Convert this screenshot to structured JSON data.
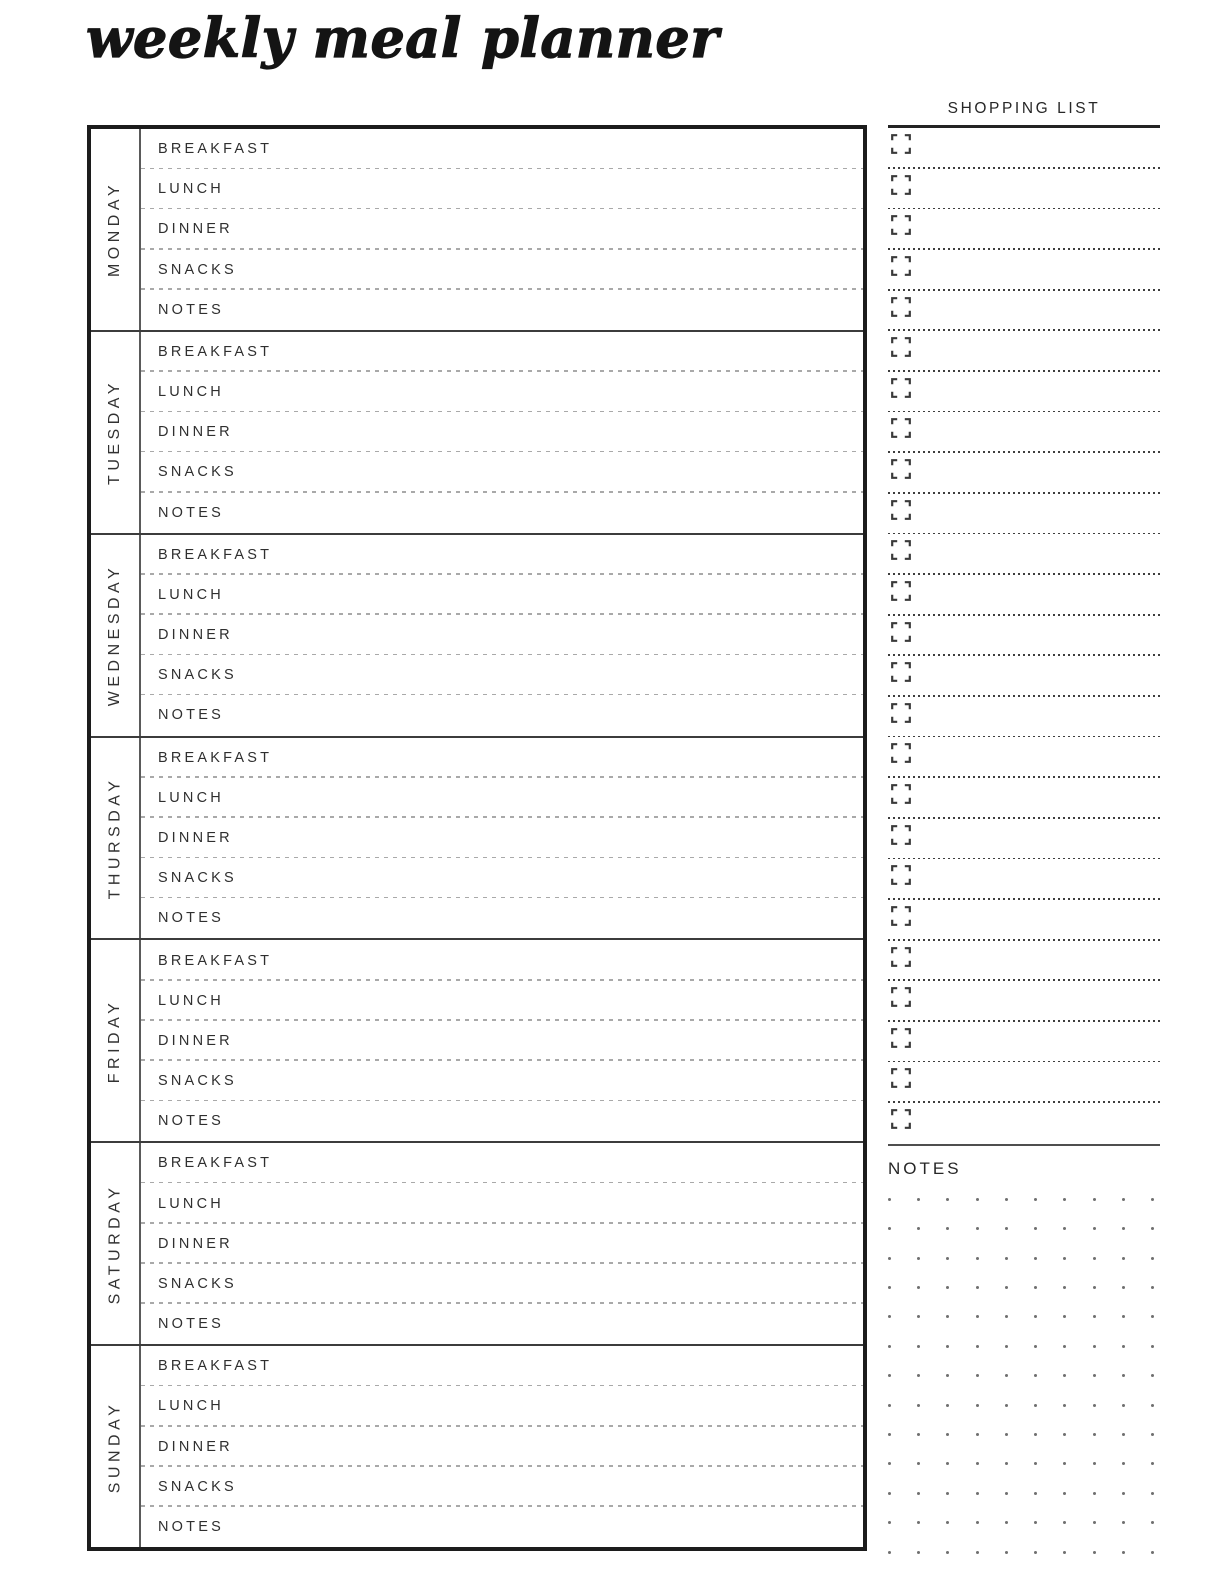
{
  "page": {
    "title": "weekly meal planner"
  },
  "planner": {
    "days": [
      "MONDAY",
      "TUESDAY",
      "WEDNESDAY",
      "THURSDAY",
      "FRIDAY",
      "SATURDAY",
      "SUNDAY"
    ],
    "meal_rows": [
      "BREAKFAST",
      "LUNCH",
      "DINNER",
      "SNACKS",
      "NOTES"
    ],
    "cell_values": ""
  },
  "shopping_list": {
    "title": "SHOPPING LIST",
    "row_count": 25,
    "item_values": ""
  },
  "notes": {
    "title": "NOTES",
    "dot_grid": {
      "columns": 10,
      "rows": 13
    }
  },
  "colors": {
    "ink": "#1c1c1c",
    "day_divider": "#3c3c3c",
    "dashed_line": "#a9a9a9",
    "dotted_line": "#3d3d3d",
    "dot": "#6f6f6f"
  }
}
